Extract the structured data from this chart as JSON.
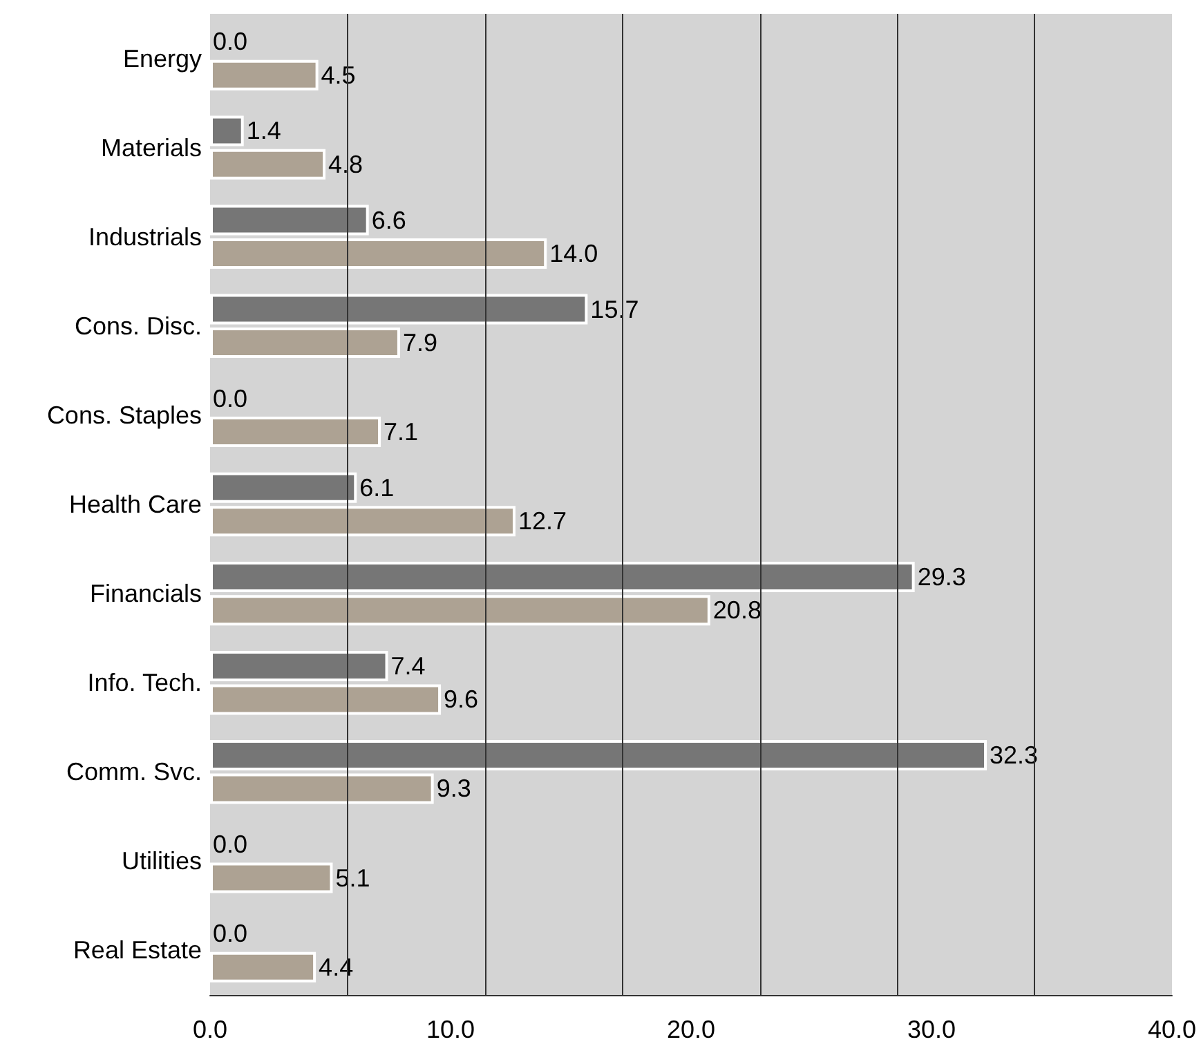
{
  "chart_data": {
    "type": "bar",
    "orientation": "horizontal",
    "categories": [
      "Energy",
      "Materials",
      "Industrials",
      "Cons. Disc.",
      "Cons. Staples",
      "Health Care",
      "Financials",
      "Info. Tech.",
      "Comm. Svc.",
      "Utilities",
      "Real Estate"
    ],
    "series": [
      {
        "color": "#767676",
        "values": [
          0.0,
          1.4,
          6.6,
          15.7,
          0.0,
          6.1,
          29.3,
          7.4,
          32.3,
          0.0,
          0.0
        ],
        "value_labels": [
          "0.0",
          "1.4",
          "6.6",
          "15.7",
          "0.0",
          "6.1",
          "29.3",
          "7.4",
          "32.3",
          "0.0",
          "0.0"
        ]
      },
      {
        "color": "#ada293",
        "values": [
          4.5,
          4.8,
          14.0,
          7.9,
          7.1,
          12.7,
          20.8,
          9.6,
          9.3,
          5.1,
          4.4
        ],
        "value_labels": [
          "4.5",
          "4.8",
          "14.0",
          "7.9",
          "7.1",
          "12.7",
          "20.8",
          "9.6",
          "9.3",
          "5.1",
          "4.4"
        ]
      }
    ],
    "xlim": [
      0,
      40
    ],
    "xticks": [
      {
        "value": 0,
        "label": "0.0"
      },
      {
        "value": 5.71,
        "label": null
      },
      {
        "value": 10,
        "label": "10.0"
      },
      {
        "value": 11.43,
        "label": null
      },
      {
        "value": 17.14,
        "label": null
      },
      {
        "value": 20,
        "label": "20.0"
      },
      {
        "value": 22.86,
        "label": null
      },
      {
        "value": 28.57,
        "label": null
      },
      {
        "value": 30,
        "label": "30.0"
      },
      {
        "value": 34.29,
        "label": null
      },
      {
        "value": 40,
        "label": "40.0"
      }
    ],
    "grid": "x"
  }
}
